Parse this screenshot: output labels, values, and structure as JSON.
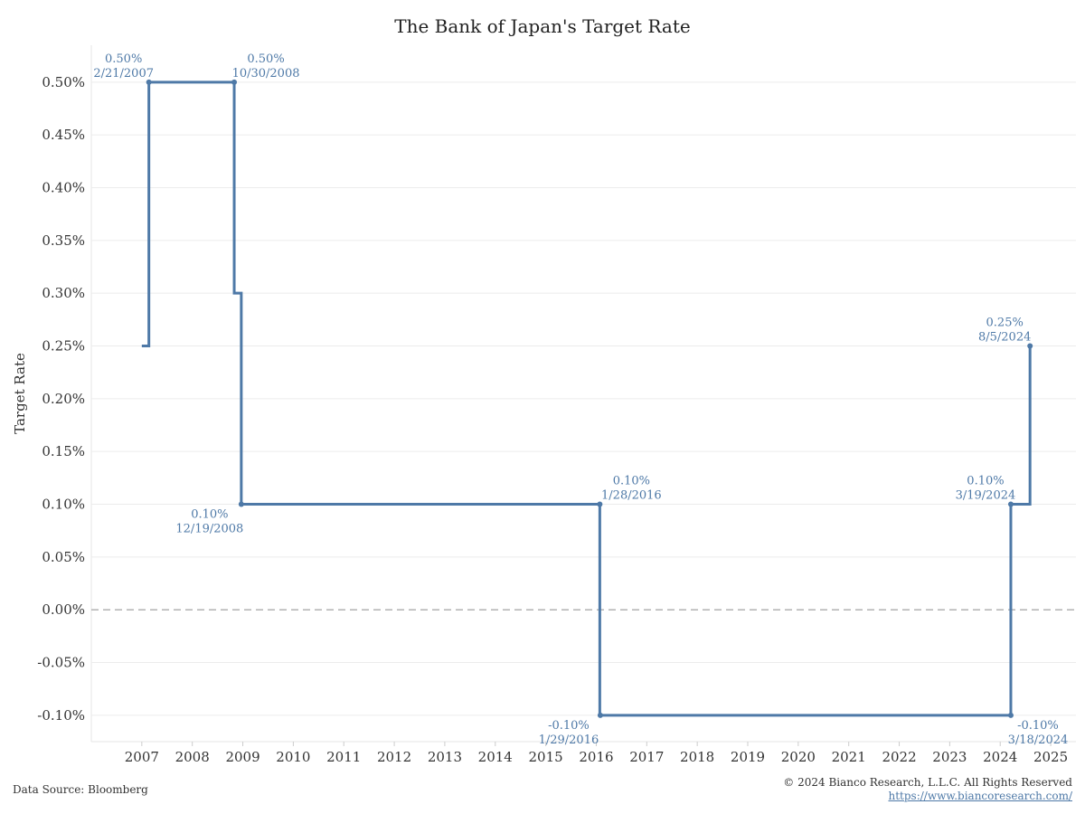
{
  "chart_data": {
    "type": "line",
    "title": "The Bank of Japan's Target Rate",
    "ylabel": "Target Rate",
    "xlabel": "",
    "line_shape": "step",
    "ylim": [
      -0.125,
      0.535
    ],
    "xlim": [
      2006.0,
      2025.5
    ],
    "y_ticks": [
      "0.50%",
      "0.45%",
      "0.40%",
      "0.35%",
      "0.30%",
      "0.25%",
      "0.20%",
      "0.15%",
      "0.10%",
      "0.05%",
      "0.00%",
      "-0.05%",
      "-0.10%"
    ],
    "y_tick_values": [
      0.5,
      0.45,
      0.4,
      0.35,
      0.3,
      0.25,
      0.2,
      0.15,
      0.1,
      0.05,
      0.0,
      -0.05,
      -0.1
    ],
    "x_ticks": [
      "2007",
      "2008",
      "2009",
      "2010",
      "2011",
      "2012",
      "2013",
      "2014",
      "2015",
      "2016",
      "2017",
      "2018",
      "2019",
      "2020",
      "2021",
      "2022",
      "2023",
      "2024",
      "2025"
    ],
    "x_tick_values": [
      2007,
      2008,
      2009,
      2010,
      2011,
      2012,
      2013,
      2014,
      2015,
      2016,
      2017,
      2018,
      2019,
      2020,
      2021,
      2022,
      2023,
      2024,
      2025
    ],
    "grid": true,
    "zero_line": "dashed",
    "series": [
      {
        "color": "#4e79a7",
        "points": [
          {
            "x": 2007.0,
            "y": 0.25
          },
          {
            "x": 2007.14,
            "y": 0.5
          },
          {
            "x": 2008.83,
            "y": 0.3
          },
          {
            "x": 2008.97,
            "y": 0.1
          },
          {
            "x": 2016.07,
            "y": -0.1
          },
          {
            "x": 2024.21,
            "y": 0.1
          },
          {
            "x": 2024.59,
            "y": 0.25
          }
        ]
      }
    ],
    "annotations": [
      {
        "x": 2007.14,
        "y": 0.5,
        "value": "0.50%",
        "date": "2/21/2007",
        "pos": "above-left"
      },
      {
        "x": 2008.83,
        "y": 0.5,
        "value": "0.50%",
        "date": "10/30/2008",
        "pos": "above-right"
      },
      {
        "x": 2008.97,
        "y": 0.1,
        "value": "0.10%",
        "date": "12/19/2008",
        "pos": "below-left"
      },
      {
        "x": 2016.07,
        "y": 0.1,
        "value": "0.10%",
        "date": "1/28/2016",
        "pos": "above-right"
      },
      {
        "x": 2016.08,
        "y": -0.1,
        "value": "-0.10%",
        "date": "1/29/2016",
        "pos": "below-left"
      },
      {
        "x": 2024.21,
        "y": 0.1,
        "value": "0.10%",
        "date": "3/19/2024",
        "pos": "above-left"
      },
      {
        "x": 2024.21,
        "y": -0.1,
        "value": "-0.10%",
        "date": "3/18/2024",
        "pos": "below-right"
      },
      {
        "x": 2024.59,
        "y": 0.25,
        "value": "0.25%",
        "date": "8/5/2024",
        "pos": "above-left"
      }
    ]
  },
  "footer": {
    "source": "Data Source: Bloomberg",
    "copyright": "© 2024 Bianco Research, L.L.C. All Rights Reserved",
    "url": "https://www.biancoresearch.com/"
  }
}
